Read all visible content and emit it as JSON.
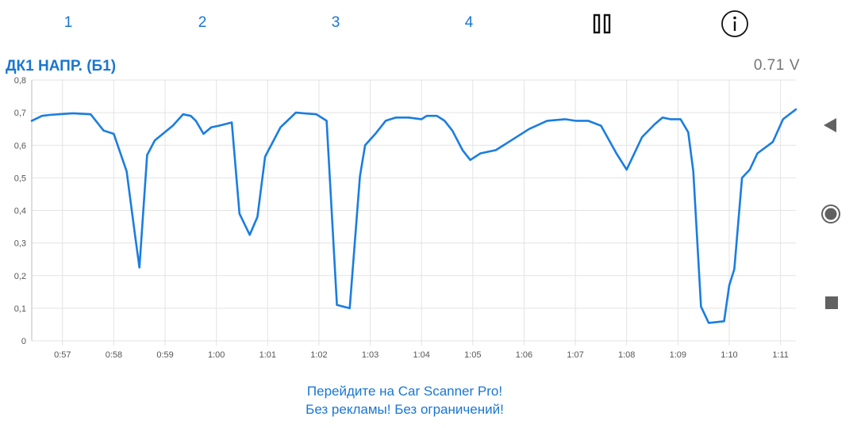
{
  "header": {
    "tabs": [
      {
        "label": "1"
      },
      {
        "label": "2"
      },
      {
        "label": "3"
      },
      {
        "label": "4"
      }
    ],
    "pause_icon": "pause-icon",
    "info_icon": "info-icon"
  },
  "sensor": {
    "title": "ДК1 НАПР. (Б1)",
    "current_value": "0.71",
    "unit": "V"
  },
  "side_controls": {
    "icons": [
      "back-triangle-icon",
      "home-circle-icon",
      "recents-square-icon"
    ]
  },
  "promo": {
    "line1": "Перейдите на Car Scanner Pro!",
    "line2": "Без рекламы! Без ограничений!"
  },
  "colors": {
    "accent": "#1976d2",
    "line": "#1a7de0",
    "grid": "#e3e3e3",
    "value_text": "#757575",
    "nav_icons": "#616161"
  },
  "chart_data": {
    "type": "line",
    "title": "ДК1 НАПР. (Б1)",
    "xlabel": "",
    "ylabel": "",
    "x_unit": "minutes:seconds (elapsed time)",
    "xlim": [
      "0:56.4",
      "1:11.3"
    ],
    "ylim": [
      0,
      0.8
    ],
    "grid": true,
    "y_ticks": [
      "0",
      "0,1",
      "0,2",
      "0,3",
      "0,4",
      "0,5",
      "0,6",
      "0,7",
      "0,8"
    ],
    "x_ticks": [
      "0:57",
      "0:58",
      "0:59",
      "1:00",
      "1:01",
      "1:02",
      "1:03",
      "1:04",
      "1:05",
      "1:06",
      "1:07",
      "1:08",
      "1:09",
      "1:10",
      "1:11"
    ],
    "series": [
      {
        "x": [
          "0:56.40",
          "0:56.60",
          "0:56.75",
          "0:57.20",
          "0:57.55",
          "0:57.80",
          "0:58.00",
          "0:58.25",
          "0:58.40",
          "0:58.50",
          "0:58.65",
          "0:58.80",
          "0:59.15",
          "0:59.35",
          "0:59.50",
          "0:59.60",
          "0:59.75",
          "0:59.90",
          "1:00.05",
          "1:00.30",
          "1:00.45",
          "1:00.65",
          "1:00.80",
          "1:00.95",
          "1:01.25",
          "1:01.35",
          "1:01.55",
          "1:01.95",
          "1:02.15",
          "1:02.35",
          "1:02.60",
          "1:02.80",
          "1:02.90",
          "1:03.10",
          "1:03.30",
          "1:03.50",
          "1:03.75",
          "1:04.00",
          "1:04.10",
          "1:04.30",
          "1:04.45",
          "1:04.60",
          "1:04.80",
          "1:04.95",
          "1:05.15",
          "1:05.45",
          "1:06.10",
          "1:06.45",
          "1:06.80",
          "1:07.00",
          "1:07.25",
          "1:07.50",
          "1:07.80",
          "1:08.00",
          "1:08.30",
          "1:08.55",
          "1:08.70",
          "1:08.85",
          "1:09.05",
          "1:09.20",
          "1:09.30",
          "1:09.45",
          "1:09.60",
          "1:09.90",
          "1:10.00",
          "1:10.10",
          "1:10.25",
          "1:10.40",
          "1:10.55",
          "1:10.85",
          "1:11.05",
          "1:11.30"
        ],
        "y": [
          0.675,
          0.69,
          0.693,
          0.698,
          0.695,
          0.645,
          0.635,
          0.52,
          0.34,
          0.225,
          0.57,
          0.615,
          0.66,
          0.695,
          0.69,
          0.675,
          0.635,
          0.655,
          0.66,
          0.67,
          0.39,
          0.325,
          0.38,
          0.565,
          0.655,
          0.67,
          0.7,
          0.695,
          0.675,
          0.11,
          0.1,
          0.505,
          0.6,
          0.635,
          0.675,
          0.685,
          0.685,
          0.68,
          0.69,
          0.69,
          0.675,
          0.645,
          0.585,
          0.555,
          0.575,
          0.585,
          0.65,
          0.675,
          0.68,
          0.675,
          0.675,
          0.66,
          0.575,
          0.525,
          0.625,
          0.665,
          0.685,
          0.68,
          0.68,
          0.64,
          0.52,
          0.105,
          0.055,
          0.06,
          0.17,
          0.22,
          0.5,
          0.525,
          0.575,
          0.61,
          0.68,
          0.71
        ]
      }
    ]
  }
}
